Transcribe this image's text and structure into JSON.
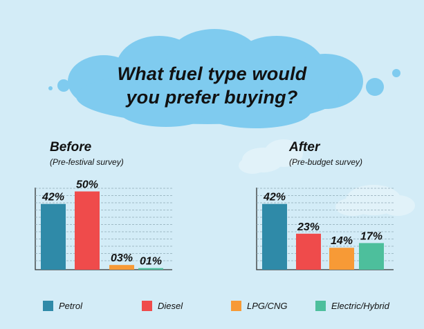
{
  "title": {
    "line1": "What fuel type would",
    "line2": "you prefer buying?"
  },
  "colors": {
    "background": "#d3ecf7",
    "cloud": "#7fcbef",
    "petrol": "#2f8aa8",
    "diesel": "#ef4b4b",
    "lpg_cng": "#f79a36",
    "electric_hybrid": "#4dbf9c"
  },
  "legend": [
    {
      "label": "Petrol",
      "color": "#2f8aa8"
    },
    {
      "label": "Diesel",
      "color": "#ef4b4b"
    },
    {
      "label": "LPG/CNG",
      "color": "#f79a36"
    },
    {
      "label": "Electric/Hybrid",
      "color": "#4dbf9c"
    }
  ],
  "chart_data": [
    {
      "type": "bar",
      "title": "Before",
      "subtitle": "(Pre-festival survey)",
      "categories": [
        "Petrol",
        "Diesel",
        "LPG/CNG",
        "Electric/Hybrid"
      ],
      "values": [
        42,
        50,
        3,
        1
      ],
      "data_labels": [
        "42%",
        "50%",
        "03%",
        "01%"
      ],
      "ylim": [
        0,
        52
      ],
      "grid": true
    },
    {
      "type": "bar",
      "title": "After",
      "subtitle": "(Pre-budget survey)",
      "categories": [
        "Petrol",
        "Diesel",
        "LPG/CNG",
        "Electric/Hybrid"
      ],
      "values": [
        42,
        23,
        14,
        17
      ],
      "data_labels": [
        "42%",
        "23%",
        "14%",
        "17%"
      ],
      "ylim": [
        0,
        52
      ],
      "grid": true
    }
  ]
}
